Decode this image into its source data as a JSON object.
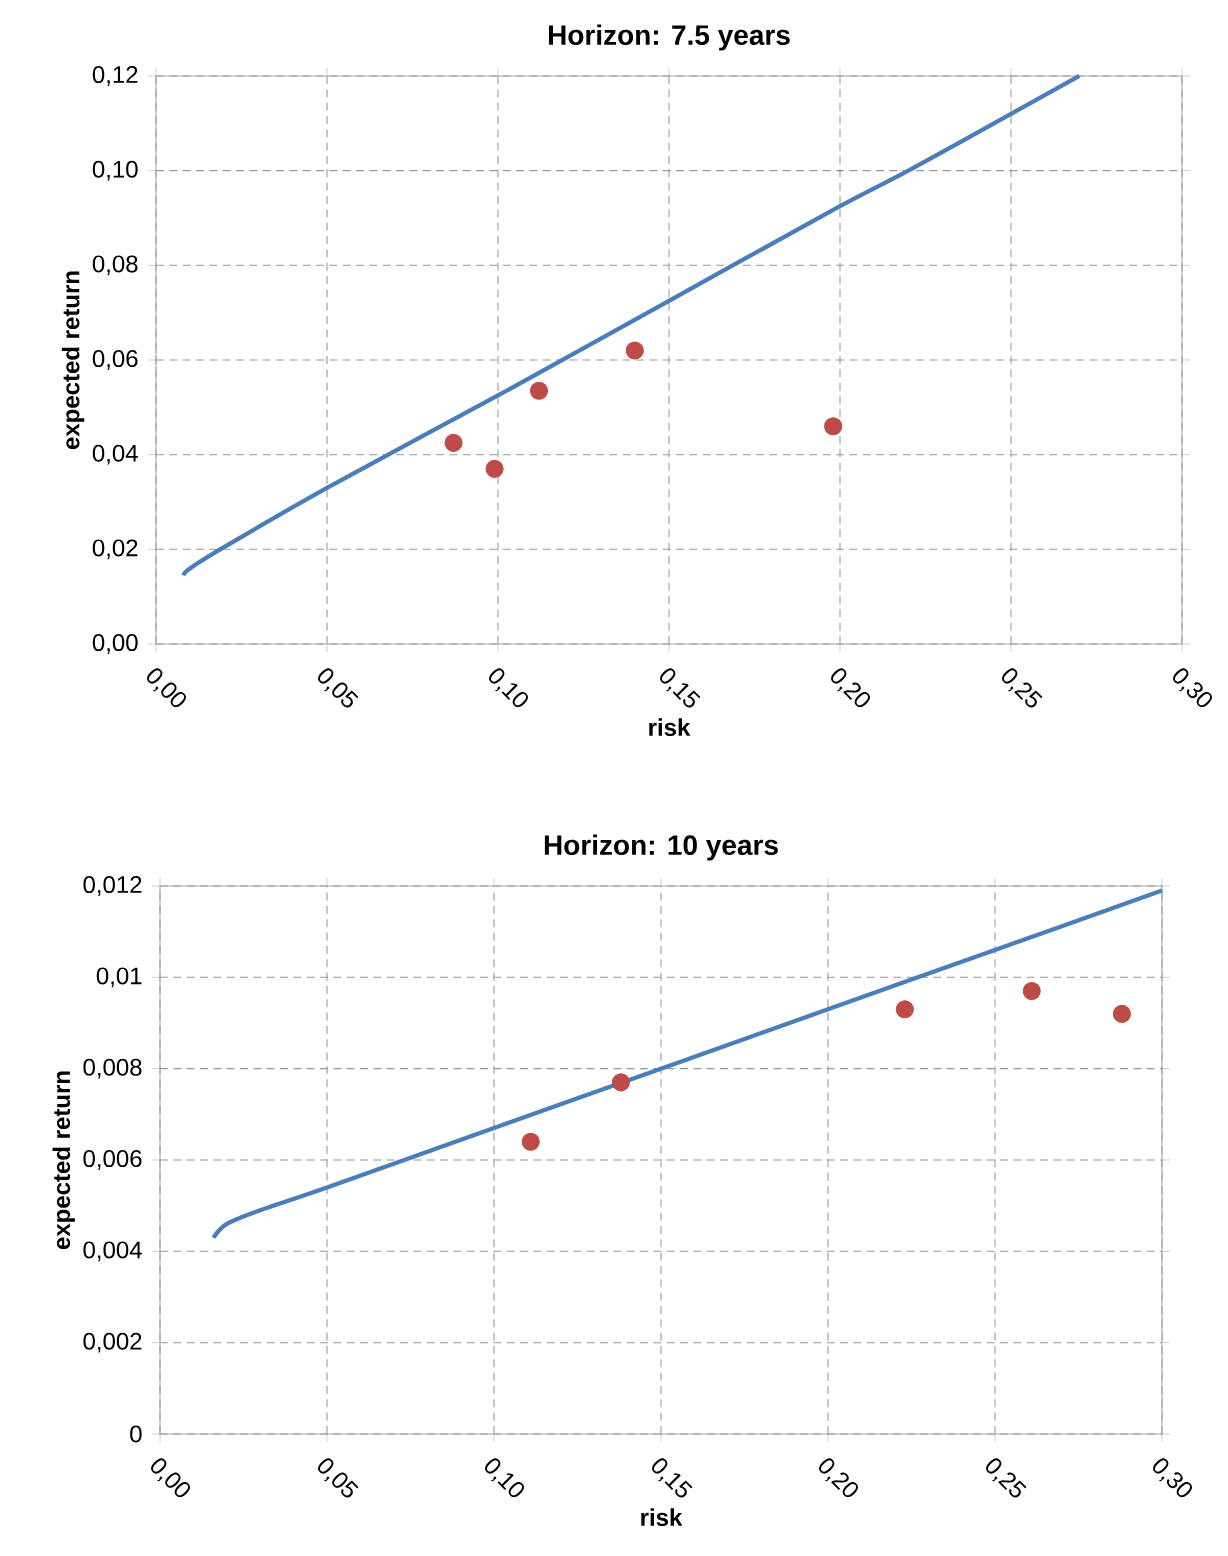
{
  "chart_data": [
    {
      "type": "scatter",
      "title": "Horizon: 7.5 years",
      "xlabel": "risk",
      "ylabel": "expected return",
      "grid": true,
      "xlim": [
        0,
        0.3
      ],
      "ylim": [
        0,
        0.12
      ],
      "xticks": [
        {
          "value": 0,
          "label": "0,00"
        },
        {
          "value": 0.05,
          "label": "0,05"
        },
        {
          "value": 0.1,
          "label": "0,10"
        },
        {
          "value": 0.15,
          "label": "0,15"
        },
        {
          "value": 0.2,
          "label": "0,20"
        },
        {
          "value": 0.25,
          "label": "0,25"
        },
        {
          "value": 0.3,
          "label": "0,30"
        }
      ],
      "yticks": [
        {
          "value": 0,
          "label": "0,00"
        },
        {
          "value": 0.02,
          "label": "0,02"
        },
        {
          "value": 0.04,
          "label": "0,04"
        },
        {
          "value": 0.06,
          "label": "0,06"
        },
        {
          "value": 0.08,
          "label": "0,08"
        },
        {
          "value": 0.1,
          "label": "0,10"
        },
        {
          "value": 0.12,
          "label": "0,12"
        }
      ],
      "series": [
        {
          "type": "line",
          "color": "#4a7ebb",
          "x": [
            0.008,
            0.01,
            0.02,
            0.05,
            0.1,
            0.15,
            0.2,
            0.22,
            0.25,
            0.27
          ],
          "values": [
            0.0145,
            0.016,
            0.0205,
            0.033,
            0.0525,
            0.0725,
            0.0925,
            0.1,
            0.112,
            0.12
          ]
        },
        {
          "color": "#be4b48",
          "x": [
            0.087,
            0.099,
            0.112,
            0.14,
            0.198
          ],
          "values": [
            0.0425,
            0.037,
            0.0535,
            0.062,
            0.046
          ]
        }
      ]
    },
    {
      "type": "scatter",
      "title": "Horizon: 10 years",
      "xlabel": "risk",
      "ylabel": "expected return",
      "grid": true,
      "xlim": [
        0,
        0.3
      ],
      "ylim": [
        0,
        0.012
      ],
      "xticks": [
        {
          "value": 0,
          "label": "0,00"
        },
        {
          "value": 0.05,
          "label": "0,05"
        },
        {
          "value": 0.1,
          "label": "0,10"
        },
        {
          "value": 0.15,
          "label": "0,15"
        },
        {
          "value": 0.2,
          "label": "0,20"
        },
        {
          "value": 0.25,
          "label": "0,25"
        },
        {
          "value": 0.3,
          "label": "0,30"
        }
      ],
      "yticks": [
        0,
        {
          "value": 0.002,
          "label": "0,002"
        },
        {
          "value": 0.004,
          "label": "0,004"
        },
        {
          "value": 0.006,
          "label": "0,006"
        },
        {
          "value": 0.008,
          "label": "0,008"
        },
        {
          "value": 0.01,
          "label": "0,01"
        },
        {
          "value": 0.012,
          "label": "0,012"
        }
      ],
      "series": [
        {
          "type": "line",
          "color": "#4a7ebb",
          "x": [
            0.016,
            0.02,
            0.03,
            0.05,
            0.1,
            0.15,
            0.2,
            0.25,
            0.3
          ],
          "values": [
            0.0043,
            0.0046,
            0.0049,
            0.0054,
            0.0067,
            0.008,
            0.0093,
            0.0106,
            0.0119
          ]
        },
        {
          "color": "#be4b48",
          "x": [
            0.111,
            0.138,
            0.223,
            0.261,
            0.288
          ],
          "values": [
            0.0064,
            0.0077,
            0.0093,
            0.0097,
            0.0092
          ]
        }
      ]
    }
  ]
}
